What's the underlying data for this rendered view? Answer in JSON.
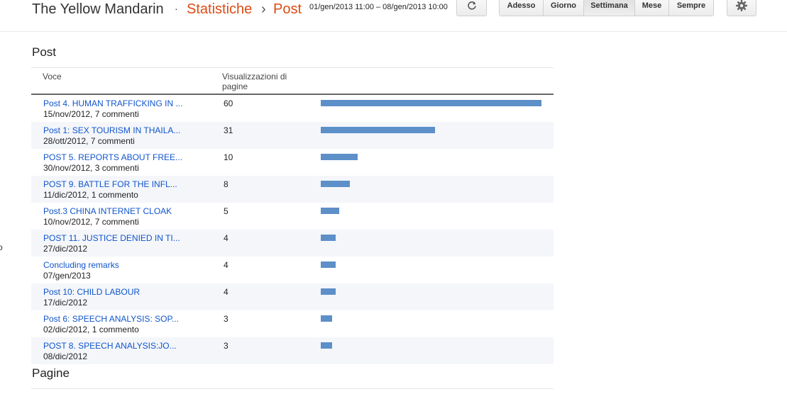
{
  "header": {
    "blog_title": "The Yellow Mandarin",
    "separator": "·",
    "crumb_stats": "Statistiche",
    "crumb_sep": "›",
    "crumb_post": "Post",
    "date_range": "01/gen/2013 11:00 – 08/gen/2013 10:00",
    "refresh_icon": "refresh-icon",
    "gear_icon": "gear-icon",
    "periods": [
      "Adesso",
      "Giorno",
      "Settimana",
      "Mese",
      "Sempre"
    ],
    "active_period": "Settimana"
  },
  "side_fragment": "o",
  "post_section": {
    "title": "Post",
    "col_voce": "Voce",
    "col_views": "Visualizzazioni di pagine",
    "max_value": 60,
    "bar_color": "#5d8fc9",
    "link_color": "#1155cc",
    "rows": [
      {
        "title": "Post 4. HUMAN TRAFFICKING IN ...",
        "meta": "15/nov/2012, 7 commenti",
        "value": 60
      },
      {
        "title": "Post 1: SEX TOURISM IN THAILA...",
        "meta": "28/ott/2012, 7 commenti",
        "value": 31
      },
      {
        "title": "POST 5. REPORTS ABOUT FREE...",
        "meta": "30/nov/2012, 3 commenti",
        "value": 10
      },
      {
        "title": "POST 9. BATTLE FOR THE INFL...",
        "meta": "11/dic/2012, 1 commento",
        "value": 8
      },
      {
        "title": "Post.3 CHINA INTERNET CLOAK",
        "meta": "10/nov/2012, 7 commenti",
        "value": 5
      },
      {
        "title": "POST 11. JUSTICE DENIED IN TI...",
        "meta": "27/dic/2012",
        "value": 4
      },
      {
        "title": "Concluding remarks",
        "meta": "07/gen/2013",
        "value": 4
      },
      {
        "title": "Post 10: CHILD LABOUR",
        "meta": "17/dic/2012",
        "value": 4
      },
      {
        "title": "Post 6: SPEECH ANALYSIS: SOP...",
        "meta": "02/dic/2012, 1 commento",
        "value": 3
      },
      {
        "title": "POST 8. SPEECH ANALYSIS:JO...",
        "meta": "08/dic/2012",
        "value": 3
      }
    ]
  },
  "pages_section": {
    "title": "Pagine"
  }
}
